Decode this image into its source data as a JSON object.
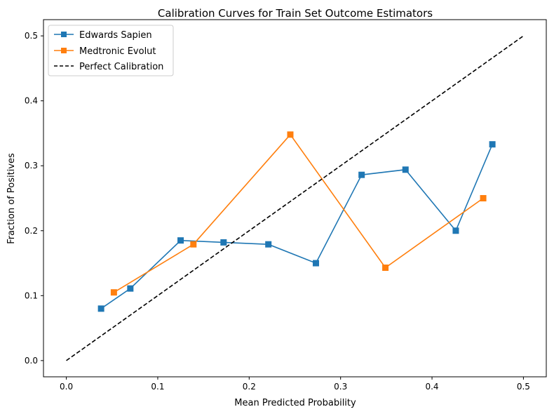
{
  "chart_data": {
    "type": "line",
    "title": "Calibration Curves for Train Set Outcome Estimators",
    "xlabel": "Mean Predicted Probability",
    "ylabel": "Fraction of Positives",
    "xlim": [
      -0.025,
      0.525
    ],
    "ylim": [
      -0.025,
      0.525
    ],
    "xticks": [
      0.0,
      0.1,
      0.2,
      0.3,
      0.4,
      0.5
    ],
    "yticks": [
      0.0,
      0.1,
      0.2,
      0.3,
      0.4,
      0.5
    ],
    "xtick_labels": [
      "0.0",
      "0.1",
      "0.2",
      "0.3",
      "0.4",
      "0.5"
    ],
    "ytick_labels": [
      "0.0",
      "0.1",
      "0.2",
      "0.3",
      "0.4",
      "0.5"
    ],
    "grid": false,
    "legend_position": "top-left",
    "series": [
      {
        "name": "Edwards Sapien",
        "color": "#1f77b4",
        "marker": "square",
        "x": [
          0.038,
          0.07,
          0.125,
          0.172,
          0.221,
          0.273,
          0.323,
          0.371,
          0.426,
          0.466
        ],
        "y": [
          0.08,
          0.111,
          0.185,
          0.182,
          0.179,
          0.15,
          0.286,
          0.294,
          0.2,
          0.333
        ]
      },
      {
        "name": "Medtronic Evolut",
        "color": "#ff7f0e",
        "marker": "square",
        "x": [
          0.052,
          0.139,
          0.245,
          0.349,
          0.456
        ],
        "y": [
          0.105,
          0.179,
          0.348,
          0.143,
          0.25
        ]
      },
      {
        "name": "Perfect Calibration",
        "color": "#000000",
        "style": "dashed",
        "x": [
          0.0,
          0.5
        ],
        "y": [
          0.0,
          0.5
        ]
      }
    ]
  }
}
